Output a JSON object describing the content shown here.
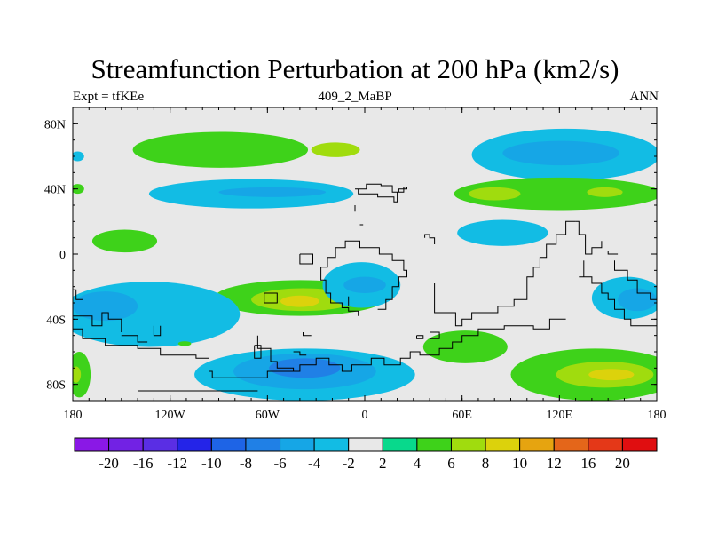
{
  "title": "Streamfunction Perturbation at 200 hPa (km2/s)",
  "subtitle_left": "Expt = tfKEe",
  "subtitle_center": "409_2_MaBP",
  "subtitle_right": "ANN",
  "chart_data": {
    "type": "heatmap",
    "title": "Streamfunction Perturbation at 200 hPa (km2/s)",
    "projection": "cylindrical equidistant",
    "x_range": [
      -180,
      180
    ],
    "y_range": [
      -90,
      90
    ],
    "xticks": [
      {
        "value": -180,
        "label": "180"
      },
      {
        "value": -120,
        "label": "120W"
      },
      {
        "value": -60,
        "label": "60W"
      },
      {
        "value": 0,
        "label": "0"
      },
      {
        "value": 60,
        "label": "60E"
      },
      {
        "value": 120,
        "label": "120E"
      },
      {
        "value": 180,
        "label": "180"
      }
    ],
    "yticks": [
      {
        "value": 80,
        "label": "80N"
      },
      {
        "value": 40,
        "label": "40N"
      },
      {
        "value": 0,
        "label": "0"
      },
      {
        "value": -40,
        "label": "40S"
      },
      {
        "value": -80,
        "label": "80S"
      }
    ],
    "colorbar": {
      "levels": [
        -20,
        -16,
        -12,
        -10,
        -8,
        -6,
        -4,
        -2,
        2,
        4,
        6,
        8,
        10,
        12,
        16,
        20
      ],
      "labels": [
        "-20",
        "-16",
        "-12",
        "-10",
        "-8",
        "-6",
        "-4",
        "-2",
        "2",
        "4",
        "6",
        "8",
        "10",
        "12",
        "16",
        "20"
      ],
      "colors": [
        "#8a18e6",
        "#7222e4",
        "#5a2ee4",
        "#2424e8",
        "#1e64e6",
        "#2080e6",
        "#16a6e6",
        "#12bce4",
        "#e8e8e8",
        "#08d98c",
        "#3ed21a",
        "#a0dc0e",
        "#dcd20c",
        "#e6a410",
        "#e4661a",
        "#e43818",
        "#e00e10"
      ]
    },
    "fields": [
      {
        "lon": -89,
        "lat": 64,
        "rx": 54,
        "ry": 11,
        "level": 4
      },
      {
        "lon": -18,
        "lat": 64,
        "rx": 15,
        "ry": 4.5,
        "level": 6
      },
      {
        "lon": 124,
        "lat": 61,
        "rx": 58,
        "ry": 16,
        "level": -4
      },
      {
        "lon": 121,
        "lat": 62,
        "rx": 36,
        "ry": 7.5,
        "level": -6
      },
      {
        "lon": -177,
        "lat": 60,
        "rx": 4,
        "ry": 3,
        "level": -4
      },
      {
        "lon": -70,
        "lat": 37,
        "rx": 63,
        "ry": 9,
        "level": -4
      },
      {
        "lon": -57,
        "lat": 38,
        "rx": 33,
        "ry": 3,
        "level": -6
      },
      {
        "lon": 119,
        "lat": 37,
        "rx": 64,
        "ry": 10,
        "level": 4
      },
      {
        "lon": 80,
        "lat": 37,
        "rx": 16,
        "ry": 4,
        "level": 6
      },
      {
        "lon": 148,
        "lat": 38,
        "rx": 11,
        "ry": 3,
        "level": 6
      },
      {
        "lon": -177,
        "lat": 40,
        "rx": 4,
        "ry": 3,
        "level": 4
      },
      {
        "lon": -148,
        "lat": 8,
        "rx": 20,
        "ry": 7,
        "level": 4
      },
      {
        "lon": 85,
        "lat": 13,
        "rx": 28,
        "ry": 8,
        "level": -4
      },
      {
        "lon": -40,
        "lat": -27,
        "rx": 53,
        "ry": 11,
        "level": 4
      },
      {
        "lon": -38,
        "lat": -28,
        "rx": 32,
        "ry": 7,
        "level": 6
      },
      {
        "lon": -40,
        "lat": -29,
        "rx": 12,
        "ry": 3.5,
        "level": 8
      },
      {
        "lon": -2,
        "lat": -19,
        "rx": 24,
        "ry": 14,
        "level": -4
      },
      {
        "lon": 0,
        "lat": -19,
        "rx": 13,
        "ry": 5,
        "level": -6
      },
      {
        "lon": -133,
        "lat": -37,
        "rx": 56,
        "ry": 20,
        "level": -4
      },
      {
        "lon": -160,
        "lat": -32,
        "rx": 20,
        "ry": 9,
        "level": -6
      },
      {
        "lon": 162,
        "lat": -27,
        "rx": 22,
        "ry": 13,
        "level": -4
      },
      {
        "lon": 168,
        "lat": -28,
        "rx": 12,
        "ry": 7,
        "level": -6
      },
      {
        "lon": 62,
        "lat": -57,
        "rx": 26,
        "ry": 10,
        "level": 4
      },
      {
        "lon": -37,
        "lat": -74,
        "rx": 68,
        "ry": 16,
        "level": -4
      },
      {
        "lon": -37,
        "lat": -72,
        "rx": 44,
        "ry": 11,
        "level": -6
      },
      {
        "lon": -37,
        "lat": -70,
        "rx": 22,
        "ry": 6,
        "level": -8
      },
      {
        "lon": -111,
        "lat": -55,
        "rx": 4,
        "ry": 1.5,
        "level": 4
      },
      {
        "lon": 142,
        "lat": -74,
        "rx": 52,
        "ry": 16,
        "level": 4
      },
      {
        "lon": 148,
        "lat": -74,
        "rx": 30,
        "ry": 8,
        "level": 6
      },
      {
        "lon": 152,
        "lat": -74,
        "rx": 14,
        "ry": 3.5,
        "level": 8
      },
      {
        "lon": -176,
        "lat": -74,
        "rx": 7,
        "ry": 14,
        "level": 4
      },
      {
        "lon": -178,
        "lat": -74,
        "rx": 3,
        "ry": 5,
        "level": 6
      }
    ],
    "coastlines": [
      [
        [
          -6,
          40
        ],
        [
          1,
          40
        ],
        [
          1,
          43
        ],
        [
          10,
          43
        ],
        [
          10,
          42
        ],
        [
          17,
          42
        ],
        [
          17,
          38
        ],
        [
          21,
          38
        ],
        [
          21,
          40
        ],
        [
          26,
          40
        ],
        [
          26,
          41
        ],
        [
          24,
          41
        ],
        [
          24,
          38
        ],
        [
          20,
          38
        ],
        [
          20,
          32
        ],
        [
          18,
          32
        ],
        [
          18,
          35
        ],
        [
          8,
          35
        ],
        [
          8,
          37
        ],
        [
          -4,
          37
        ],
        [
          -4,
          40
        ],
        [
          -6,
          40
        ]
      ],
      [
        [
          -6,
          26
        ],
        [
          -6,
          30
        ]
      ],
      [
        [
          -3,
          18
        ],
        [
          -1,
          18
        ]
      ],
      [
        [
          37,
          10
        ],
        [
          37,
          12
        ],
        [
          40,
          12
        ],
        [
          40,
          10
        ],
        [
          43,
          10
        ],
        [
          43,
          6
        ]
      ],
      [
        [
          -40,
          0
        ],
        [
          -40,
          -6
        ],
        [
          -32,
          -6
        ],
        [
          -32,
          0
        ],
        [
          -40,
          0
        ]
      ],
      [
        [
          -23,
          -2
        ],
        [
          -23,
          -8
        ],
        [
          -27,
          -8
        ],
        [
          -27,
          -16
        ],
        [
          -24,
          -16
        ],
        [
          -24,
          -24
        ],
        [
          -21,
          -24
        ],
        [
          -21,
          -30
        ],
        [
          -14,
          -30
        ],
        [
          -14,
          -33
        ],
        [
          -10,
          -33
        ],
        [
          -10,
          -35
        ],
        [
          -4,
          -35
        ],
        [
          -4,
          -38
        ]
      ],
      [
        [
          -23,
          -2
        ],
        [
          -18,
          -2
        ],
        [
          -18,
          4
        ],
        [
          -12,
          4
        ],
        [
          -12,
          8
        ],
        [
          -3,
          8
        ],
        [
          -3,
          4
        ],
        [
          9,
          4
        ],
        [
          9,
          0
        ],
        [
          17,
          0
        ],
        [
          17,
          -4
        ],
        [
          24,
          -4
        ],
        [
          24,
          -10
        ],
        [
          26,
          -10
        ],
        [
          26,
          -14
        ],
        [
          21,
          -14
        ],
        [
          21,
          -20
        ],
        [
          17,
          -20
        ],
        [
          17,
          -28
        ],
        [
          13,
          -28
        ],
        [
          13,
          -34
        ],
        [
          8,
          -34
        ]
      ],
      [
        [
          -62,
          -30
        ],
        [
          -62,
          -24
        ],
        [
          -54,
          -24
        ],
        [
          -54,
          -30
        ],
        [
          -62,
          -30
        ]
      ],
      [
        [
          -10,
          -26
        ],
        [
          -10,
          -32
        ]
      ],
      [
        [
          32,
          -50
        ],
        [
          32,
          -52
        ],
        [
          36,
          -52
        ],
        [
          36,
          -50
        ],
        [
          32,
          -50
        ]
      ],
      [
        [
          40,
          -48
        ],
        [
          46,
          -48
        ],
        [
          46,
          -52
        ],
        [
          40,
          -52
        ]
      ],
      [
        [
          43,
          -18
        ],
        [
          43,
          -36
        ],
        [
          56,
          -36
        ],
        [
          56,
          -44
        ],
        [
          60,
          -44
        ],
        [
          60,
          -40
        ],
        [
          66,
          -40
        ],
        [
          66,
          -36
        ],
        [
          82,
          -36
        ],
        [
          82,
          -32
        ],
        [
          92,
          -32
        ],
        [
          92,
          -28
        ],
        [
          100,
          -28
        ],
        [
          100,
          -14
        ],
        [
          104,
          -14
        ],
        [
          104,
          -8
        ],
        [
          108,
          -8
        ],
        [
          108,
          -2
        ],
        [
          112,
          -2
        ],
        [
          112,
          6
        ],
        [
          118,
          6
        ],
        [
          118,
          12
        ],
        [
          124,
          12
        ],
        [
          124,
          20
        ],
        [
          130,
          20
        ]
      ],
      [
        [
          132,
          -14
        ],
        [
          140,
          -14
        ],
        [
          140,
          -18
        ],
        [
          146,
          -18
        ],
        [
          146,
          -24
        ],
        [
          150,
          -24
        ],
        [
          150,
          -28
        ],
        [
          154,
          -28
        ],
        [
          154,
          -34
        ],
        [
          160,
          -34
        ],
        [
          160,
          -40
        ],
        [
          164,
          -40
        ],
        [
          164,
          -44
        ],
        [
          180,
          -44
        ]
      ],
      [
        [
          130,
          20
        ],
        [
          132,
          20
        ],
        [
          132,
          12
        ],
        [
          136,
          12
        ],
        [
          136,
          0
        ],
        [
          140,
          0
        ],
        [
          140,
          4
        ],
        [
          146,
          4
        ],
        [
          146,
          8
        ]
      ],
      [
        [
          150,
          2
        ],
        [
          150,
          0
        ],
        [
          156,
          0
        ]
      ],
      [
        [
          154,
          -4
        ],
        [
          154,
          -10
        ],
        [
          162,
          -10
        ],
        [
          162,
          -16
        ],
        [
          168,
          -16
        ],
        [
          168,
          -24
        ],
        [
          176,
          -24
        ],
        [
          176,
          -28
        ],
        [
          180,
          -28
        ]
      ],
      [
        [
          135,
          -4
        ],
        [
          135,
          -14
        ]
      ],
      [
        [
          -180,
          -38
        ],
        [
          -168,
          -38
        ],
        [
          -168,
          -44
        ],
        [
          -162,
          -44
        ],
        [
          -162,
          -36
        ],
        [
          -158,
          -36
        ],
        [
          -158,
          -40
        ],
        [
          -150,
          -40
        ],
        [
          -150,
          -48
        ]
      ],
      [
        [
          -180,
          -22
        ],
        [
          -178,
          -22
        ],
        [
          -178,
          -28
        ],
        [
          -174,
          -28
        ]
      ],
      [
        [
          -180,
          -46
        ],
        [
          -174,
          -46
        ],
        [
          -174,
          -52
        ],
        [
          -160,
          -52
        ],
        [
          -160,
          -56
        ],
        [
          -140,
          -56
        ],
        [
          -140,
          -58
        ],
        [
          -126,
          -58
        ],
        [
          -126,
          -62
        ],
        [
          -104,
          -62
        ],
        [
          -104,
          -64
        ],
        [
          -96,
          -64
        ],
        [
          -96,
          -72
        ],
        [
          -94,
          -72
        ],
        [
          -94,
          -76
        ],
        [
          -60,
          -76
        ],
        [
          -60,
          -72
        ],
        [
          -44,
          -72
        ]
      ],
      [
        [
          -130,
          -44
        ],
        [
          -130,
          -50
        ],
        [
          -126,
          -50
        ],
        [
          -126,
          -44
        ]
      ],
      [
        [
          -150,
          -50
        ],
        [
          -140,
          -50
        ],
        [
          -140,
          -54
        ],
        [
          -134,
          -54
        ]
      ],
      [
        [
          -66,
          -50
        ],
        [
          -66,
          -58
        ],
        [
          -58,
          -58
        ],
        [
          -58,
          -66
        ],
        [
          -54,
          -66
        ],
        [
          -54,
          -70
        ],
        [
          -44,
          -70
        ],
        [
          -44,
          -72
        ],
        [
          -40,
          -72
        ],
        [
          -40,
          -68
        ],
        [
          -30,
          -68
        ],
        [
          -30,
          -64
        ],
        [
          -22,
          -64
        ],
        [
          -22,
          -68
        ],
        [
          -14,
          -68
        ],
        [
          -14,
          -72
        ],
        [
          -8,
          -72
        ],
        [
          -8,
          -68
        ],
        [
          4,
          -68
        ],
        [
          4,
          -64
        ],
        [
          12,
          -64
        ],
        [
          12,
          -68
        ],
        [
          22,
          -68
        ],
        [
          22,
          -64
        ],
        [
          28,
          -64
        ],
        [
          28,
          -60
        ],
        [
          34,
          -60
        ],
        [
          34,
          -62
        ],
        [
          46,
          -62
        ],
        [
          46,
          -58
        ],
        [
          54,
          -58
        ],
        [
          54,
          -54
        ],
        [
          60,
          -54
        ],
        [
          60,
          -50
        ],
        [
          70,
          -50
        ],
        [
          70,
          -46
        ],
        [
          86,
          -46
        ],
        [
          86,
          -44
        ],
        [
          104,
          -44
        ],
        [
          104,
          -46
        ],
        [
          114,
          -46
        ],
        [
          114,
          -40
        ],
        [
          124,
          -40
        ]
      ],
      [
        [
          -38,
          -48
        ],
        [
          -38,
          -50
        ],
        [
          -33,
          -50
        ]
      ],
      [
        [
          -44,
          -60
        ],
        [
          -40,
          -60
        ],
        [
          -40,
          -62
        ],
        [
          -36,
          -62
        ]
      ],
      [
        [
          -68,
          -56
        ],
        [
          -68,
          -64
        ],
        [
          -64,
          -64
        ],
        [
          -64,
          -56
        ],
        [
          -68,
          -56
        ]
      ],
      [
        [
          -140,
          -84
        ],
        [
          -66,
          -84
        ]
      ]
    ]
  }
}
